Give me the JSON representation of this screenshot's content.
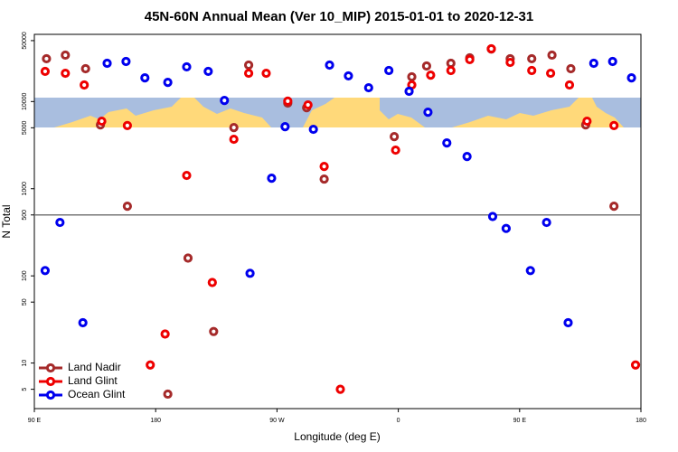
{
  "chart_data": {
    "type": "scatter",
    "title": "45N-60N Annual Mean (Ver 10_MIP)   2015-01-01 to 2020-12-31",
    "x_label": "Longitude (deg E)",
    "y_label": "N Total",
    "xlim": [
      90,
      540
    ],
    "xticks": [
      {
        "value": 90,
        "label": "90 E"
      },
      180,
      {
        "value": 270,
        "label": "90 W"
      },
      {
        "value": 360,
        "label": "0"
      },
      {
        "value": 450,
        "label": "90 E"
      },
      {
        "value": 540,
        "label": "180"
      }
    ],
    "ylim": [
      3,
      59000
    ],
    "log_y": true,
    "yticks": [
      5,
      10,
      50,
      100,
      500,
      1000,
      5000,
      10000,
      50000
    ],
    "hline": 500,
    "legend": "bottom-left",
    "series": [
      {
        "name": "Land Nadir",
        "color": "#a52a2a",
        "x": [
          99,
          113,
          128,
          139,
          159,
          204,
          189,
          223,
          238,
          249,
          278,
          292,
          305,
          357,
          370,
          381,
          399,
          413,
          429,
          443,
          459,
          474,
          488,
          499,
          520
        ],
        "values": [
          31000,
          34100,
          23800,
          5400,
          630,
          160,
          4.4,
          23,
          5030,
          26200,
          9600,
          8500,
          1290,
          3960,
          19200,
          25600,
          27500,
          31700,
          40000,
          31000,
          31000,
          34100,
          23800,
          5400,
          630
        ]
      },
      {
        "name": "Land Glint",
        "color": "#ee0000",
        "x": [
          98,
          113,
          127,
          140,
          159,
          176,
          187,
          203,
          222,
          238,
          249,
          262,
          278,
          293,
          305,
          317,
          358,
          370,
          384,
          399,
          413,
          429,
          443,
          459,
          473,
          487,
          500,
          520,
          536
        ],
        "values": [
          22200,
          21100,
          15500,
          5950,
          5300,
          9.5,
          21.5,
          1420,
          84,
          3690,
          21100,
          21100,
          10100,
          9150,
          1800,
          5,
          2770,
          15500,
          20100,
          22700,
          30300,
          40300,
          28100,
          22700,
          21100,
          15500,
          5950,
          5300,
          9.5
        ]
      },
      {
        "name": "Ocean Glint",
        "color": "#0000ee",
        "x": [
          98,
          109,
          126,
          144,
          158,
          172,
          189,
          203,
          219,
          231,
          250,
          266,
          276,
          297,
          309,
          323,
          338,
          353,
          368,
          382,
          396,
          411,
          430,
          440,
          458,
          470,
          486,
          505,
          519,
          533
        ],
        "values": [
          115,
          410,
          29,
          27500,
          28800,
          18700,
          16600,
          25000,
          22200,
          10300,
          107,
          1320,
          5150,
          4800,
          26200,
          19700,
          14400,
          22700,
          13100,
          7550,
          3350,
          2340,
          480,
          350,
          115,
          410,
          29,
          27500,
          28800,
          18700
        ]
      }
    ]
  }
}
